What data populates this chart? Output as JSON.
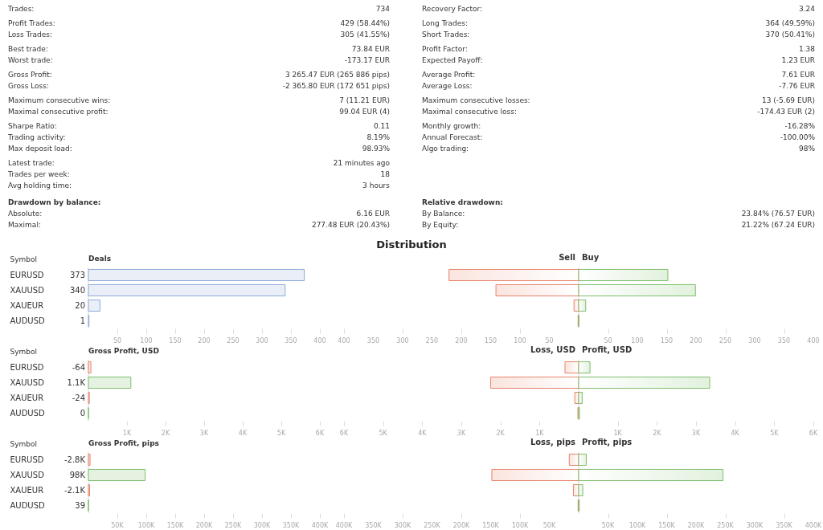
{
  "chart_data": [
    {
      "type": "other",
      "annotations": [
        "Trades:",
        "734",
        "Profit Trades:",
        "429 (58.44%)",
        "Loss Trades:",
        "305 (41.55%)",
        "Best trade:",
        "73.84 EUR",
        "Worst trade:",
        "-173.17 EUR",
        "Gross Profit:",
        "3 265.47 EUR (265 886 pips)",
        "Gross Loss:",
        "-2 365.80 EUR (172 651 pips)",
        "Maximum consecutive wins:",
        "7 (11.21 EUR)",
        "Maximal consecutive profit:",
        "99.04 EUR (4)",
        "Sharpe Ratio:",
        "0.11",
        "Trading activity:",
        "8.19%",
        "Max deposit load:",
        "98.93%",
        "Latest trade:",
        "21 minutes ago",
        "Trades per week:",
        "18",
        "Avg holding time:",
        "3 hours"
      ]
    },
    {
      "type": "other",
      "annotations": [
        "Recovery Factor:",
        "3.24",
        "Long Trades:",
        "364 (49.59%)",
        "Short Trades:",
        "370 (50.41%)",
        "Profit Factor:",
        "1.38",
        "Expected Payoff:",
        "1.23 EUR",
        "Average Profit:",
        "7.61 EUR",
        "Average Loss:",
        "-7.76 EUR",
        "Maximum consecutive losses:",
        "13 (-5.69 EUR)",
        "Maximal consecutive loss:",
        "-174.43 EUR (2)",
        "Monthly growth:",
        "-16.28%",
        "Annual Forecast:",
        "-100.00%",
        "Algo trading:",
        "98%"
      ]
    },
    {
      "type": "other",
      "title": "Drawdown by balance:",
      "annotations": [
        "Absolute:",
        "6.16 EUR",
        "Maximal:",
        "277.48 EUR (20.43%)"
      ]
    },
    {
      "type": "other",
      "title": "Relative drawdown:",
      "annotations": [
        "By Balance:",
        "23.84% (76.57 EUR)",
        "By Equity:",
        "21.22% (67.24 EUR)"
      ]
    },
    {
      "type": "other",
      "title": "Distribution"
    },
    {
      "type": "bar",
      "orientation": "horizontal",
      "xlabel": "Deals",
      "ylabel": "Symbol",
      "categories": [
        "EURUSD",
        "XAUUSD",
        "XAUEUR",
        "AUDUSD"
      ],
      "values": [
        373,
        340,
        20,
        1
      ],
      "color": "#8fabd9",
      "data_labels": true,
      "xlim": [
        0,
        400
      ],
      "xticks": [
        50,
        100,
        150,
        200,
        250,
        300,
        350,
        400
      ],
      "ref_lines": [
        {
          "axis": "x",
          "value": 0
        }
      ]
    },
    {
      "type": "bar",
      "orientation": "horizontal",
      "stacked": true,
      "categories": [
        null,
        null,
        null,
        null
      ],
      "tick_labels": "x",
      "series": [
        {
          "name": "Sell",
          "color": "#e8836a",
          "values": [
            -221,
            -141,
            -8,
            -1
          ]
        },
        {
          "name": "Buy",
          "color": "#7dbf6b",
          "values": [
            152,
            199,
            12,
            0
          ]
        }
      ],
      "xlim": [
        -400,
        400
      ],
      "xticks": [
        {
          "value": -400,
          "label": "400"
        },
        {
          "value": -350,
          "label": "350"
        },
        {
          "value": -300,
          "label": "300"
        },
        {
          "value": -250,
          "label": "250"
        },
        {
          "value": -200,
          "label": "200"
        },
        {
          "value": -150,
          "label": "150"
        },
        {
          "value": -100,
          "label": "100"
        },
        {
          "value": -50,
          "label": "50"
        },
        50,
        100,
        150,
        200,
        250,
        300,
        350,
        400
      ],
      "ref_lines": [
        {
          "axis": "x",
          "value": 0
        }
      ]
    },
    {
      "type": "bar",
      "orientation": "horizontal",
      "xlabel": "Gross Profit, USD",
      "ylabel": "Symbol",
      "categories": [
        "EURUSD",
        "XAUUSD",
        "XAUEUR",
        "AUDUSD"
      ],
      "values": [
        -64,
        1100,
        -24,
        0
      ],
      "base": [
        64,
        0,
        24,
        0
      ],
      "value_labels": [
        "-64",
        "1.1K",
        "-24",
        "0"
      ],
      "colors": [
        "#e8836a",
        "#7dbf6b",
        "#e8836a",
        "#7dbf6b"
      ],
      "xlim": [
        0,
        6000
      ],
      "xticks": [
        {
          "value": 1000,
          "label": "1K"
        },
        {
          "value": 2000,
          "label": "2K"
        },
        {
          "value": 3000,
          "label": "3K"
        },
        {
          "value": 4000,
          "label": "4K"
        },
        {
          "value": 5000,
          "label": "5K"
        },
        {
          "value": 6000,
          "label": "6K"
        }
      ],
      "ref_lines": [
        {
          "axis": "x",
          "value": 0
        }
      ]
    },
    {
      "type": "bar",
      "orientation": "horizontal",
      "stacked": true,
      "categories": [
        null,
        null,
        null,
        null
      ],
      "tick_labels": "x",
      "series": [
        {
          "name": "Loss, USD",
          "color": "#e8836a",
          "values": [
            -350,
            -2250,
            -100,
            -20
          ]
        },
        {
          "name": "Profit, USD",
          "color": "#7dbf6b",
          "values": [
            290,
            3350,
            90,
            20
          ]
        }
      ],
      "xlim": [
        -6000,
        6000
      ],
      "xticks": [
        {
          "value": -6000,
          "label": "6K"
        },
        {
          "value": -5000,
          "label": "5K"
        },
        {
          "value": -4000,
          "label": "4K"
        },
        {
          "value": -3000,
          "label": "3K"
        },
        {
          "value": -2000,
          "label": "2K"
        },
        {
          "value": -1000,
          "label": "1K"
        },
        {
          "value": 1000,
          "label": "1K"
        },
        {
          "value": 2000,
          "label": "2K"
        },
        {
          "value": 3000,
          "label": "3K"
        },
        {
          "value": 4000,
          "label": "4K"
        },
        {
          "value": 5000,
          "label": "5K"
        },
        {
          "value": 6000,
          "label": "6K"
        }
      ],
      "ref_lines": [
        {
          "axis": "x",
          "value": 0
        }
      ]
    },
    {
      "type": "bar",
      "orientation": "horizontal",
      "xlabel": "Gross Profit, pips",
      "ylabel": "Symbol",
      "categories": [
        "EURUSD",
        "XAUUSD",
        "XAUEUR",
        "AUDUSD"
      ],
      "values": [
        -2800,
        98000,
        -2100,
        39
      ],
      "base": [
        2800,
        0,
        2100,
        0
      ],
      "value_labels": [
        "-2.8K",
        "98K",
        "-2.1K",
        "39"
      ],
      "colors": [
        "#e8836a",
        "#7dbf6b",
        "#e8836a",
        "#7dbf6b"
      ],
      "xlim": [
        0,
        400000
      ],
      "xticks": [
        {
          "value": 50000,
          "label": "50K"
        },
        {
          "value": 100000,
          "label": "100K"
        },
        {
          "value": 150000,
          "label": "150K"
        },
        {
          "value": 200000,
          "label": "200K"
        },
        {
          "value": 250000,
          "label": "250K"
        },
        {
          "value": 300000,
          "label": "300K"
        },
        {
          "value": 350000,
          "label": "350K"
        },
        {
          "value": 400000,
          "label": "400K"
        }
      ],
      "ref_lines": [
        {
          "axis": "x",
          "value": 0
        }
      ]
    },
    {
      "type": "bar",
      "orientation": "horizontal",
      "stacked": true,
      "categories": [
        null,
        null,
        null,
        null
      ],
      "tick_labels": "x",
      "series": [
        {
          "name": "Loss, pips",
          "color": "#e8836a",
          "values": [
            -16000,
            -148000,
            -9000,
            -1000
          ]
        },
        {
          "name": "Profit, pips",
          "color": "#7dbf6b",
          "values": [
            13000,
            246000,
            7000,
            1000
          ]
        }
      ],
      "xlim": [
        -400000,
        400000
      ],
      "xticks": [
        {
          "value": -400000,
          "label": "400K"
        },
        {
          "value": -350000,
          "label": "350K"
        },
        {
          "value": -300000,
          "label": "300K"
        },
        {
          "value": -250000,
          "label": "250K"
        },
        {
          "value": -200000,
          "label": "200K"
        },
        {
          "value": -150000,
          "label": "150K"
        },
        {
          "value": -100000,
          "label": "100K"
        },
        {
          "value": -50000,
          "label": "50K"
        },
        {
          "value": 50000,
          "label": "50K"
        },
        {
          "value": 100000,
          "label": "100K"
        },
        {
          "value": 150000,
          "label": "150K"
        },
        {
          "value": 200000,
          "label": "200K"
        },
        {
          "value": 250000,
          "label": "250K"
        },
        {
          "value": 300000,
          "label": "300K"
        },
        {
          "value": 350000,
          "label": "350K"
        },
        {
          "value": 400000,
          "label": "400K"
        }
      ],
      "ref_lines": [
        {
          "axis": "x",
          "value": 0
        }
      ]
    }
  ]
}
